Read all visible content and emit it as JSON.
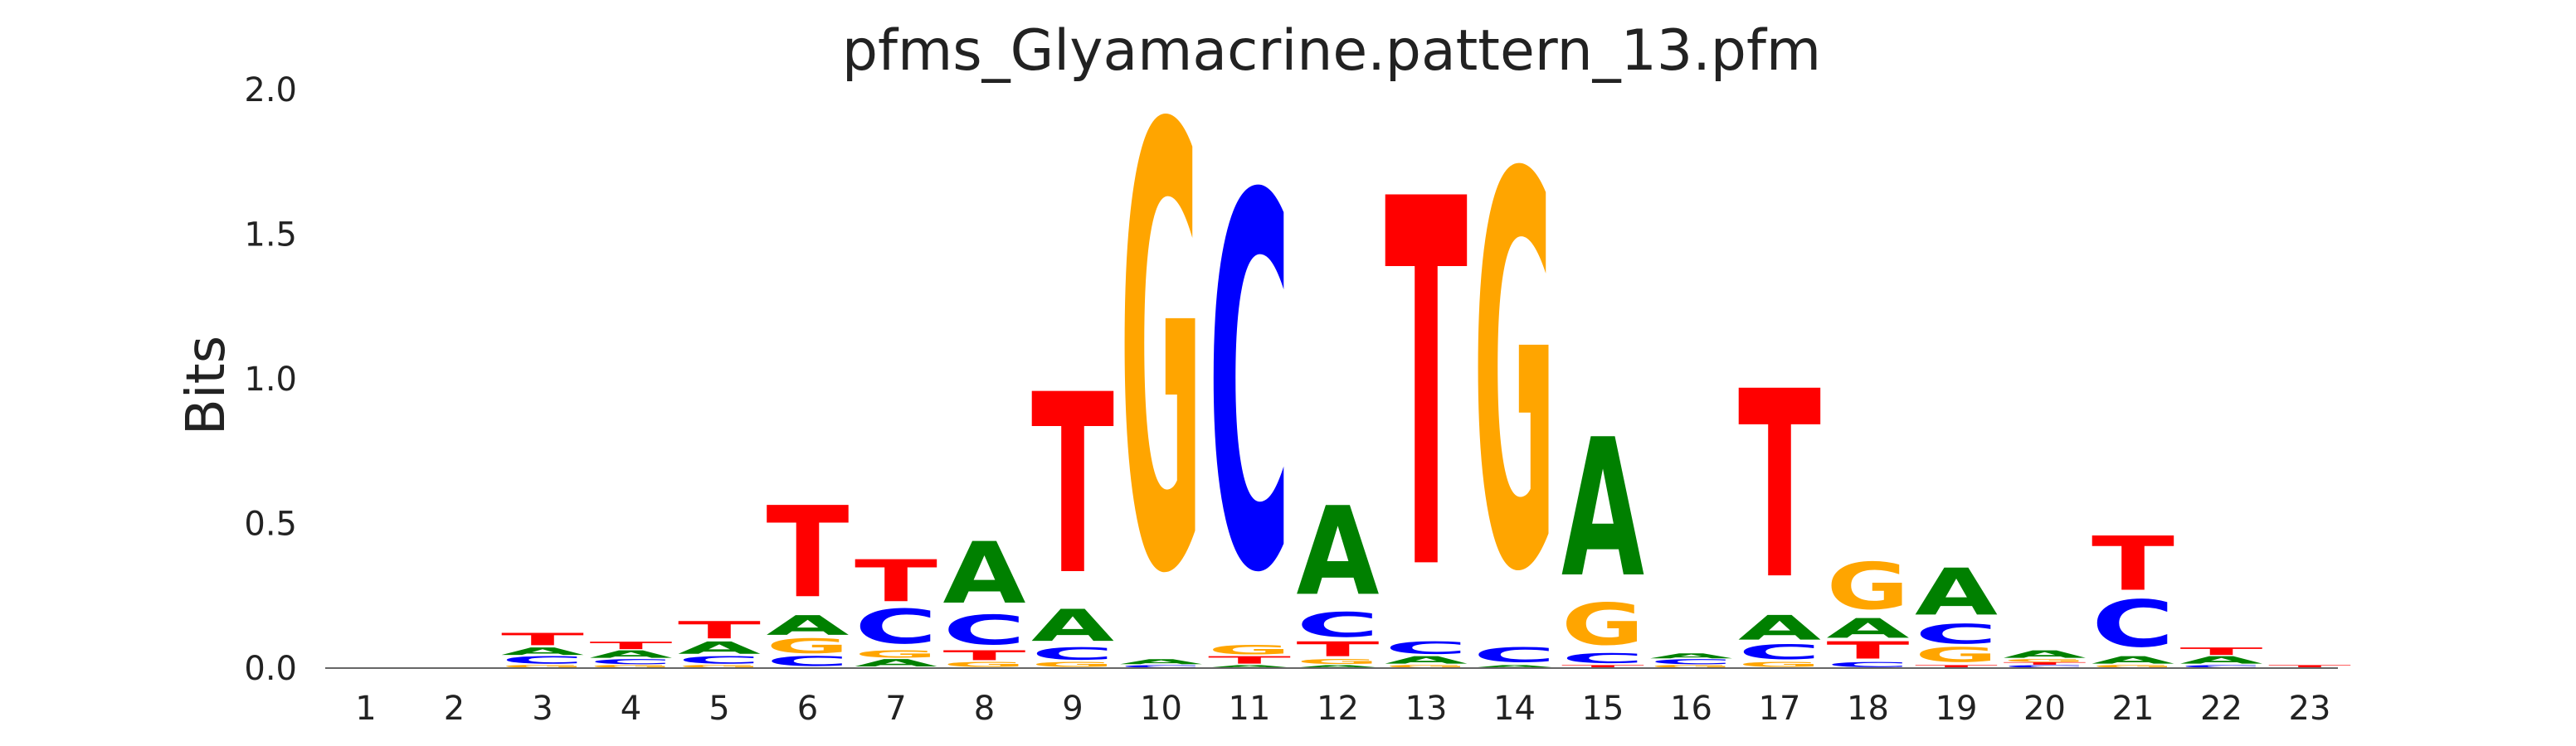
{
  "chart_data": {
    "type": "sequence_logo",
    "title": "pfms_Glyamacrine.pattern_13.pfm",
    "xlabel": "",
    "ylabel": "Bits",
    "ylim": [
      0,
      2.0
    ],
    "yticks": [
      "0.0",
      "0.5",
      "1.0",
      "1.5",
      "2.0"
    ],
    "positions": [
      "1",
      "2",
      "3",
      "4",
      "5",
      "6",
      "7",
      "8",
      "9",
      "10",
      "11",
      "12",
      "13",
      "14",
      "15",
      "16",
      "17",
      "18",
      "19",
      "20",
      "21",
      "22",
      "23"
    ],
    "colors": {
      "A": "#008000",
      "C": "#0000ff",
      "G": "#ffa500",
      "T": "#ff0000"
    },
    "grid": false,
    "stacks": [
      [],
      [],
      [
        [
          "G",
          0.01
        ],
        [
          "C",
          0.03
        ],
        [
          "A",
          0.03
        ],
        [
          "T",
          0.05
        ]
      ],
      [
        [
          "G",
          0.01
        ],
        [
          "C",
          0.02
        ],
        [
          "A",
          0.03
        ],
        [
          "T",
          0.03
        ]
      ],
      [
        [
          "G",
          0.01
        ],
        [
          "C",
          0.03
        ],
        [
          "A",
          0.05
        ],
        [
          "T",
          0.07
        ]
      ],
      [
        [
          "C",
          0.04
        ],
        [
          "G",
          0.06
        ],
        [
          "A",
          0.08
        ],
        [
          "T",
          0.37
        ]
      ],
      [
        [
          "A",
          0.03
        ],
        [
          "G",
          0.03
        ],
        [
          "C",
          0.14
        ],
        [
          "T",
          0.17
        ]
      ],
      [
        [
          "G",
          0.02
        ],
        [
          "T",
          0.04
        ],
        [
          "C",
          0.12
        ],
        [
          "A",
          0.25
        ]
      ],
      [
        [
          "G",
          0.02
        ],
        [
          "C",
          0.05
        ],
        [
          "A",
          0.13
        ],
        [
          "T",
          0.73
        ]
      ],
      [
        [
          "C",
          0.01
        ],
        [
          "A",
          0.02
        ],
        [
          "G",
          1.79
        ]
      ],
      [
        [
          "A",
          0.01
        ],
        [
          "T",
          0.03
        ],
        [
          "G",
          0.04
        ],
        [
          "C",
          1.51
        ]
      ],
      [
        [
          "A",
          0.01
        ],
        [
          "G",
          0.02
        ],
        [
          "T",
          0.06
        ],
        [
          "C",
          0.1
        ],
        [
          "A",
          0.36
        ]
      ],
      [
        [
          "G",
          0.01
        ],
        [
          "A",
          0.03
        ],
        [
          "C",
          0.05
        ],
        [
          "T",
          1.49
        ]
      ],
      [
        [
          "A",
          0.01
        ],
        [
          "C",
          0.06
        ],
        [
          "G",
          1.59
        ]
      ],
      [
        [
          "T",
          0.01
        ],
        [
          "C",
          0.04
        ],
        [
          "G",
          0.17
        ],
        [
          "A",
          0.56
        ]
      ],
      [
        [
          "G",
          0.01
        ],
        [
          "C",
          0.02
        ],
        [
          "A",
          0.02
        ]
      ],
      [
        [
          "G",
          0.02
        ],
        [
          "C",
          0.06
        ],
        [
          "A",
          0.1
        ],
        [
          "T",
          0.76
        ]
      ],
      [
        [
          "C",
          0.02
        ],
        [
          "T",
          0.07
        ],
        [
          "A",
          0.08
        ],
        [
          "G",
          0.19
        ]
      ],
      [
        [
          "T",
          0.01
        ],
        [
          "G",
          0.06
        ],
        [
          "C",
          0.08
        ],
        [
          "A",
          0.19
        ]
      ],
      [
        [
          "C",
          0.01
        ],
        [
          "T",
          0.01
        ],
        [
          "G",
          0.01
        ],
        [
          "A",
          0.03
        ]
      ],
      [
        [
          "G",
          0.01
        ],
        [
          "A",
          0.03
        ],
        [
          "C",
          0.19
        ],
        [
          "T",
          0.22
        ]
      ],
      [
        [
          "C",
          0.01
        ],
        [
          "A",
          0.03
        ],
        [
          "T",
          0.03
        ]
      ],
      [
        [
          "T",
          0.01
        ]
      ]
    ]
  }
}
